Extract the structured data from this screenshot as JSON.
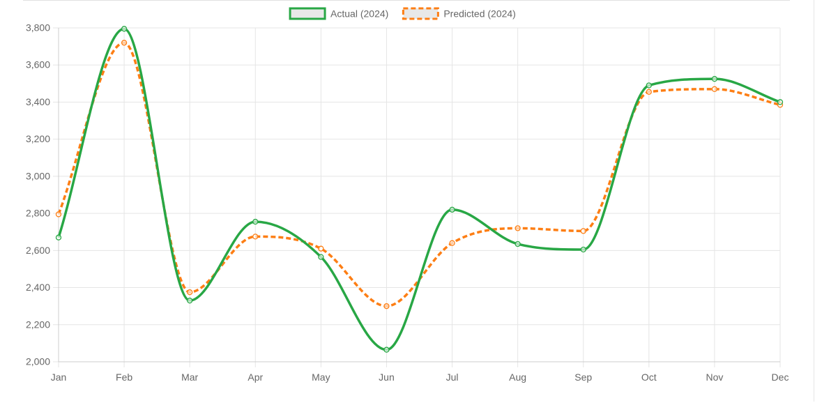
{
  "chart_data": {
    "type": "line",
    "title": "",
    "xlabel": "",
    "ylabel": "",
    "categories": [
      "Jan",
      "Feb",
      "Mar",
      "Apr",
      "May",
      "Jun",
      "Jul",
      "Aug",
      "Sep",
      "Oct",
      "Nov",
      "Dec"
    ],
    "ylim": [
      2000,
      3800
    ],
    "yticks": [
      2000,
      2200,
      2400,
      2600,
      2800,
      3000,
      3200,
      3400,
      3600,
      3800
    ],
    "grid": true,
    "legend_position": "top-center",
    "series": [
      {
        "name": "Actual (2024)",
        "color": "#28a745",
        "style": "solid",
        "values": [
          2670,
          3795,
          2330,
          2755,
          2565,
          2065,
          2820,
          2635,
          2605,
          3490,
          3525,
          3400
        ]
      },
      {
        "name": "Predicted (2024)",
        "color": "#fd7e14",
        "style": "dashed",
        "values": [
          2795,
          3720,
          2375,
          2675,
          2610,
          2300,
          2640,
          2720,
          2705,
          3455,
          3470,
          3385
        ]
      }
    ]
  }
}
